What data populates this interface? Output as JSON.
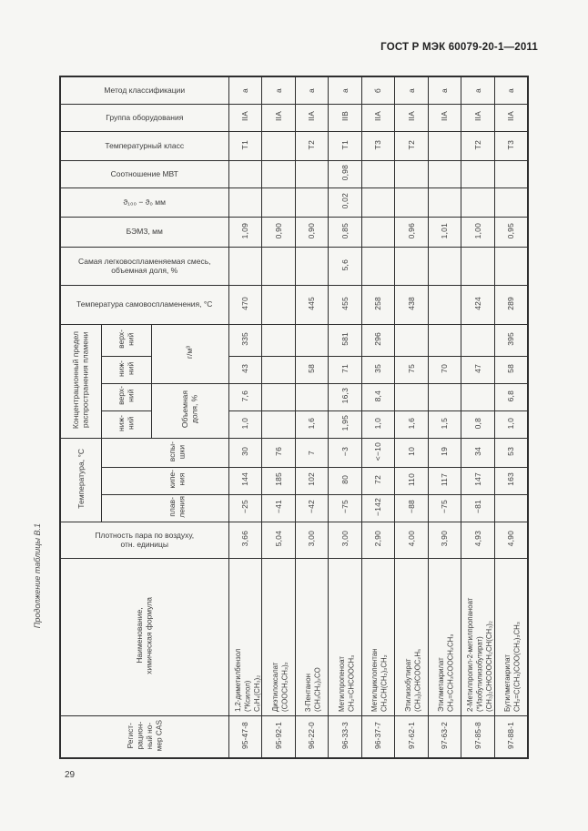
{
  "page": {
    "header_title": "ГОСТ Р МЭК 60079-20-1—2011",
    "table_caption": "Продолжение таблицы В.1",
    "page_number": "29"
  },
  "colors": {
    "background": "#f6f6f3",
    "border": "#2e2e2e",
    "text": "#3c3c3c"
  },
  "table": {
    "row_labels": {
      "method": "Метод классификации",
      "equip_group": "Группа оборудования",
      "temp_class": "Температурный класс",
      "mic_ratio": "Соотношение МВТ",
      "theta": "ϑ₁₀₀ − ϑ₀ мм",
      "mesg": "БЭМЗ, мм",
      "most_flammable": "Самая легковоспламеняемая смесь,\nобъемная доля, %",
      "autoignition": "Температура самовоспламенения,  °С",
      "flame_limits_group": "Концентрационный предел\nраспространения пламени",
      "upper": "верх-\nний",
      "lower": "ниж-\nний",
      "gm3": "г/м³",
      "vol_share": "Объемная\nдоля, %",
      "temperature_group": "Температура, °С",
      "flash": "вспы-\nшки",
      "boiling": "кипе-\nния",
      "melting": "плав-\nления",
      "density": "Плотность пара по воздуху,\nотн. единицы",
      "substance": "Наименование,\nхимическая формула",
      "cas": "Регист-\nрацион-\nный но-\nмер CAS"
    },
    "columns": [
      {
        "cas": "95-47-8",
        "name": "1,2-диметилбензол\n(*Ксилол)",
        "formula": "C₆H₄(CH₃)₂",
        "density": "3,66",
        "melting": "−25",
        "boiling": "144",
        "flash": "30",
        "lel_vol": "1,0",
        "uel_vol": "7,6",
        "lel_gm3": "43",
        "uel_gm3": "335",
        "autoignition": "470",
        "most_flammable": "",
        "mesg": "1,09",
        "theta": "",
        "mic_ratio": "",
        "temp_class": "Т1",
        "equip_group": "IIA",
        "method": "а"
      },
      {
        "cas": "95-92-1",
        "name": "Диэтилоксалат",
        "formula": "(COOCH₂CH₃)₂",
        "density": "5,04",
        "melting": "−41",
        "boiling": "185",
        "flash": "76",
        "lel_vol": "",
        "uel_vol": "",
        "lel_gm3": "",
        "uel_gm3": "",
        "autoignition": "",
        "most_flammable": "",
        "mesg": "0,90",
        "theta": "",
        "mic_ratio": "",
        "temp_class": "",
        "equip_group": "IIA",
        "method": "а"
      },
      {
        "cas": "96-22-0",
        "name": "3-Пентанон",
        "formula": "(CH₃CH₂)₂CO",
        "density": "3,00",
        "melting": "−42",
        "boiling": "102",
        "flash": "7",
        "lel_vol": "1,6",
        "uel_vol": "",
        "lel_gm3": "58",
        "uel_gm3": "",
        "autoignition": "445",
        "most_flammable": "",
        "mesg": "0,90",
        "theta": "",
        "mic_ratio": "",
        "temp_class": "Т2",
        "equip_group": "IIA",
        "method": "а"
      },
      {
        "cas": "96-33-3",
        "name": "Метилпропеноат",
        "formula": "CH₂=CHCOOCH₃",
        "density": "3,00",
        "melting": "−75",
        "boiling": "80",
        "flash": "−3",
        "lel_vol": "1,95",
        "uel_vol": "16,3",
        "lel_gm3": "71",
        "uel_gm3": "581",
        "autoignition": "455",
        "most_flammable": "5,6",
        "mesg": "0,85",
        "theta": "0,02",
        "mic_ratio": "0,98",
        "temp_class": "Т1",
        "equip_group": "IIB",
        "method": "а"
      },
      {
        "cas": "96-37-7",
        "name": "Метилциклопентан",
        "formula": "CH₃CH(CH₂)₃CH₂",
        "density": "2,90",
        "melting": "−142",
        "boiling": "72",
        "flash": "<−10",
        "lel_vol": "1,0",
        "uel_vol": "8,4",
        "lel_gm3": "35",
        "uel_gm3": "296",
        "autoignition": "258",
        "most_flammable": "",
        "mesg": "",
        "theta": "",
        "mic_ratio": "",
        "temp_class": "Т3",
        "equip_group": "IIA",
        "method": "б"
      },
      {
        "cas": "97-62-1",
        "name": "Этилизобутират",
        "formula": "(CH₃)₂CHCOOC₂H₅",
        "density": "4,00",
        "melting": "−88",
        "boiling": "110",
        "flash": "10",
        "lel_vol": "1,6",
        "uel_vol": "",
        "lel_gm3": "75",
        "uel_gm3": "",
        "autoignition": "438",
        "most_flammable": "",
        "mesg": "0,96",
        "theta": "",
        "mic_ratio": "",
        "temp_class": "Т2",
        "equip_group": "IIA",
        "method": "а"
      },
      {
        "cas": "97-63-2",
        "name": "Этилметакрилат",
        "formula": "CH₂=CCH₃COOCH₂CH₃",
        "density": "3,90",
        "melting": "−75",
        "boiling": "117",
        "flash": "19",
        "lel_vol": "1,5",
        "uel_vol": "",
        "lel_gm3": "70",
        "uel_gm3": "",
        "autoignition": "",
        "most_flammable": "",
        "mesg": "1,01",
        "theta": "",
        "mic_ratio": "",
        "temp_class": "",
        "equip_group": "IIA",
        "method": "а"
      },
      {
        "cas": "97-85-8",
        "name": "2-Метилпропил-2-метилпропаноат\n(*Изобутилизобутират)",
        "formula": "(CH₃)₂CHCOOCH₂CH(CH₃)₂",
        "density": "4,93",
        "melting": "−81",
        "boiling": "147",
        "flash": "34",
        "lel_vol": "0,8",
        "uel_vol": "",
        "lel_gm3": "47",
        "uel_gm3": "",
        "autoignition": "424",
        "most_flammable": "",
        "mesg": "1,00",
        "theta": "",
        "mic_ratio": "",
        "temp_class": "Т2",
        "equip_group": "IIA",
        "method": "а"
      },
      {
        "cas": "97-88-1",
        "name": "Бутилметакрилат",
        "formula": "CH₂=C(CH₃)COO(CH₂)₃CH₃",
        "density": "4,90",
        "melting": "",
        "boiling": "163",
        "flash": "53",
        "lel_vol": "1,0",
        "uel_vol": "6,8",
        "lel_gm3": "58",
        "uel_gm3": "395",
        "autoignition": "289",
        "most_flammable": "",
        "mesg": "0,95",
        "theta": "",
        "mic_ratio": "",
        "temp_class": "Т3",
        "equip_group": "IIA",
        "method": "а"
      }
    ]
  }
}
